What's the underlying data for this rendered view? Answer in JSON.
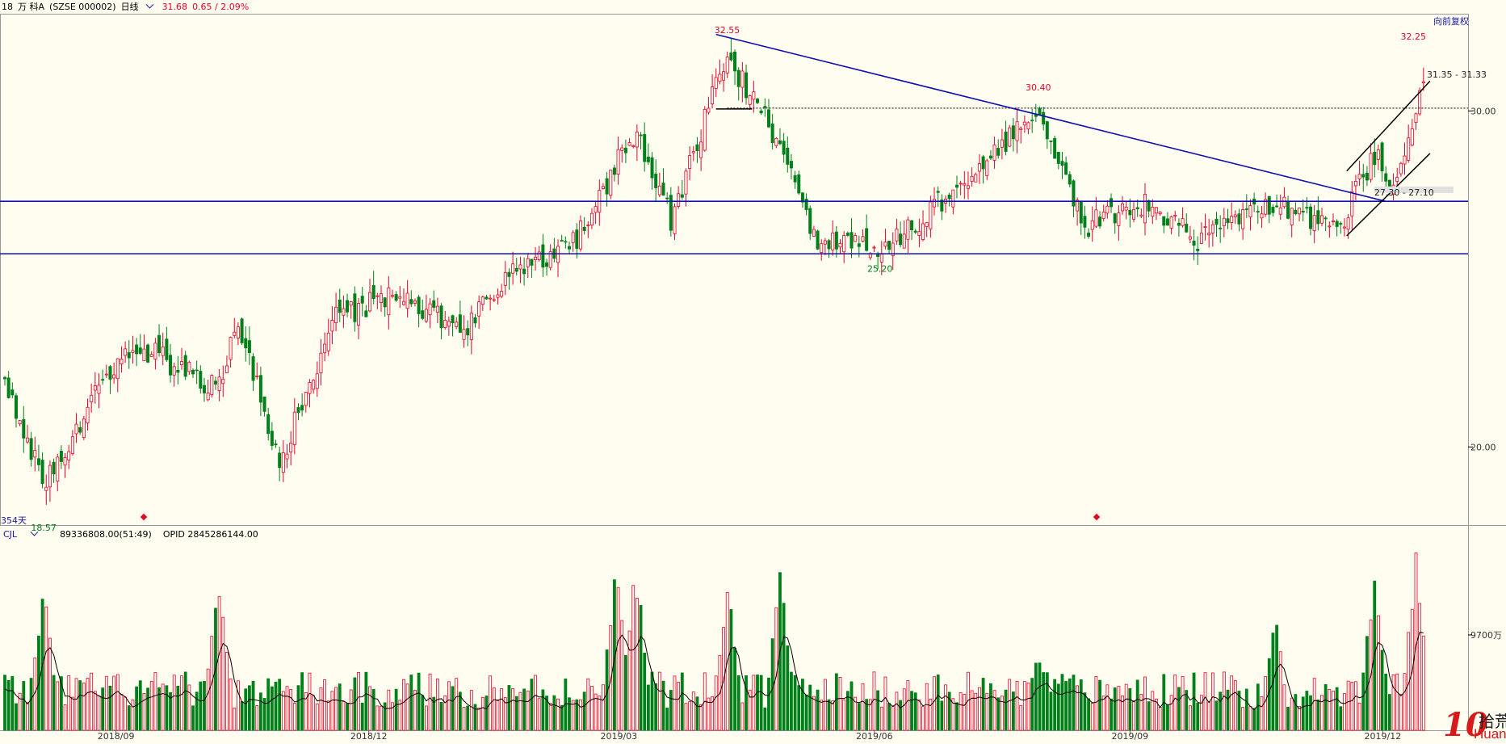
{
  "header": {
    "code_prefix": "18",
    "name": "万 科A",
    "ticker": "(SZSE 000002)",
    "period": "日线",
    "last_price": "31.68",
    "change": "0.65 / 2.09%",
    "adjust_label": "向前复权"
  },
  "days_label": "354天",
  "volume_header": {
    "label": "CJL",
    "value": "89336808.00(51:49)",
    "opid": "OPID 2845286144.00"
  },
  "watermark": {
    "cn": "拾荒网",
    "domain": "Huang.CN",
    "mark": "10"
  },
  "chart_data": [
    {
      "type": "candlestick",
      "title": "",
      "x_labels": [
        "2018/09",
        "2018/12",
        "2019/03",
        "2019/06",
        "2019/09",
        "2019/12"
      ],
      "y_ticks": [
        20.0,
        30.0
      ],
      "y_tick_labels": [
        "20.00",
        "30.00"
      ],
      "ylim": [
        18.2,
        33.7
      ],
      "scale": "log",
      "annotations": [
        {
          "text": "32.55",
          "value": 32.55,
          "kind": "high"
        },
        {
          "text": "30.40",
          "value": 30.4,
          "kind": "high"
        },
        {
          "text": "25.20",
          "value": 25.2,
          "kind": "low"
        },
        {
          "text": "18.57",
          "value": 18.57,
          "kind": "low"
        },
        {
          "text": "32.25",
          "value": 32.25,
          "kind": "high"
        },
        {
          "text": "31.35 - 31.33",
          "kind": "range"
        },
        {
          "text": "27.30 - 27.10",
          "kind": "range"
        }
      ],
      "horizontal_lines": [
        26.9,
        25.25
      ],
      "dotted_line": 30.1,
      "anchors": [
        {
          "date": "2018/07/23",
          "close": 21.6
        },
        {
          "date": "2018/08/06",
          "close": 19.1
        },
        {
          "date": "2018/08/24",
          "close": 21.2
        },
        {
          "date": "2018/09/07",
          "close": 22.7
        },
        {
          "date": "2018/10/08",
          "close": 21.4
        },
        {
          "date": "2018/10/15",
          "close": 23.2
        },
        {
          "date": "2018/10/30",
          "close": 19.6
        },
        {
          "date": "2018/11/19",
          "close": 23.4
        },
        {
          "date": "2018/12/13",
          "close": 24.1
        },
        {
          "date": "2019/01/04",
          "close": 22.9
        },
        {
          "date": "2019/01/18",
          "close": 24.4
        },
        {
          "date": "2019/02/14",
          "close": 25.7
        },
        {
          "date": "2019/03/07",
          "close": 29.3
        },
        {
          "date": "2019/03/20",
          "close": 26.3
        },
        {
          "date": "2019/04/09",
          "close": 32.0
        },
        {
          "date": "2019/04/24",
          "close": 29.6
        },
        {
          "date": "2019/05/10",
          "close": 25.8
        },
        {
          "date": "2019/06/03",
          "close": 25.3
        },
        {
          "date": "2019/07/02",
          "close": 27.4
        },
        {
          "date": "2019/07/30",
          "close": 29.9
        },
        {
          "date": "2019/08/15",
          "close": 26.1
        },
        {
          "date": "2019/09/06",
          "close": 26.8
        },
        {
          "date": "2019/09/25",
          "close": 25.7
        },
        {
          "date": "2019/10/23",
          "close": 26.9
        },
        {
          "date": "2019/11/15",
          "close": 26.0
        },
        {
          "date": "2019/11/28",
          "close": 28.5
        },
        {
          "date": "2019/12/06",
          "close": 27.3
        },
        {
          "date": "2019/12/16",
          "close": 31.68
        }
      ],
      "colors": {
        "up": "#e8002a",
        "down": "#00801a",
        "trendline": "#1010b0",
        "channel": "#000000"
      }
    },
    {
      "type": "bar",
      "series_name": "CJL",
      "y_tick_labels": [
        "9700万"
      ],
      "peaks": [
        {
          "date": "2018/07/23",
          "value": 0.35
        },
        {
          "date": "2018/08/06",
          "value": 0.8
        },
        {
          "date": "2018/10/08",
          "value": 0.9
        },
        {
          "date": "2019/02/28",
          "value": 0.92
        },
        {
          "date": "2019/03/07",
          "value": 0.98
        },
        {
          "date": "2019/04/09",
          "value": 0.86
        },
        {
          "date": "2019/04/28",
          "value": 0.9
        },
        {
          "date": "2019/07/30",
          "value": 0.45
        },
        {
          "date": "2019/10/23",
          "value": 0.68
        },
        {
          "date": "2019/11/28",
          "value": 0.94
        },
        {
          "date": "2019/12/13",
          "value": 1.0
        }
      ]
    }
  ]
}
